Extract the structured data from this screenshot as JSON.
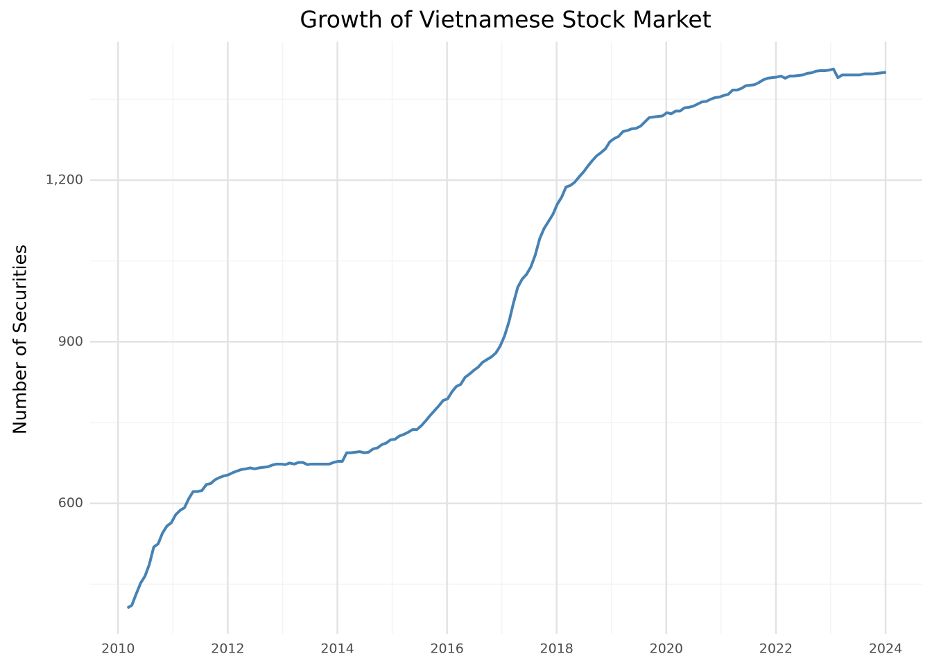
{
  "chart_data": {
    "type": "line",
    "title": "Growth of Vietnamese Stock Market",
    "y_label": "Number of Securities",
    "x": [
      2010.17,
      2010.25,
      2010.33,
      2010.41,
      2010.49,
      2010.57,
      2010.65,
      2010.73,
      2010.81,
      2010.89,
      2010.97,
      2011.05,
      2011.13,
      2011.21,
      2011.29,
      2011.37,
      2011.45,
      2011.53,
      2011.61,
      2011.69,
      2011.77,
      2011.85,
      2011.93,
      2012.01,
      2012.09,
      2012.17,
      2012.25,
      2012.33,
      2012.41,
      2012.49,
      2012.57,
      2012.65,
      2012.73,
      2012.81,
      2012.89,
      2012.97,
      2013.05,
      2013.13,
      2013.21,
      2013.29,
      2013.37,
      2013.45,
      2013.53,
      2013.61,
      2013.69,
      2013.77,
      2013.85,
      2013.93,
      2014.01,
      2014.09,
      2014.17,
      2014.25,
      2014.33,
      2014.41,
      2014.49,
      2014.57,
      2014.65,
      2014.73,
      2014.81,
      2014.89,
      2014.97,
      2015.05,
      2015.13,
      2015.21,
      2015.29,
      2015.37,
      2015.45,
      2015.53,
      2015.61,
      2015.69,
      2015.77,
      2015.85,
      2015.93,
      2016.01,
      2016.09,
      2016.17,
      2016.25,
      2016.33,
      2016.41,
      2016.49,
      2016.57,
      2016.65,
      2016.73,
      2016.81,
      2016.89,
      2016.97,
      2017.05,
      2017.13,
      2017.21,
      2017.29,
      2017.37,
      2017.45,
      2017.53,
      2017.61,
      2017.69,
      2017.77,
      2017.85,
      2017.93,
      2018.01,
      2018.09,
      2018.17,
      2018.25,
      2018.33,
      2018.41,
      2018.49,
      2018.57,
      2018.65,
      2018.73,
      2018.81,
      2018.89,
      2018.97,
      2019.05,
      2019.13,
      2019.21,
      2019.29,
      2019.37,
      2019.45,
      2019.53,
      2019.61,
      2019.69,
      2019.77,
      2019.85,
      2019.93,
      2020.01,
      2020.09,
      2020.17,
      2020.25,
      2020.33,
      2020.41,
      2020.49,
      2020.57,
      2020.65,
      2020.73,
      2020.81,
      2020.89,
      2020.97,
      2021.05,
      2021.13,
      2021.21,
      2021.29,
      2021.37,
      2021.45,
      2021.53,
      2021.61,
      2021.69,
      2021.77,
      2021.85,
      2021.93,
      2022.01,
      2022.09,
      2022.17,
      2022.25,
      2022.33,
      2022.41,
      2022.49,
      2022.57,
      2022.65,
      2022.73,
      2022.81,
      2022.89,
      2022.97,
      2023.05,
      2023.13,
      2023.21,
      2023.29,
      2023.37,
      2023.45,
      2023.53,
      2023.61,
      2023.69,
      2023.77,
      2023.85,
      2023.93,
      2024.01
    ],
    "series": [
      {
        "name": "Securities",
        "color": "#4682b4",
        "values": [
          406,
          411,
          432,
          452,
          465,
          487,
          519,
          525,
          545,
          558,
          564,
          579,
          587,
          592,
          609,
          622,
          622,
          624,
          635,
          637,
          644,
          648,
          651,
          653,
          657,
          660,
          663,
          664,
          666,
          664,
          666,
          667,
          668,
          671,
          673,
          673,
          672,
          675,
          673,
          676,
          676,
          672,
          673,
          673,
          673,
          673,
          673,
          676,
          678,
          678,
          694,
          694,
          695,
          696,
          694,
          695,
          701,
          703,
          709,
          712,
          718,
          719,
          725,
          728,
          732,
          737,
          737,
          744,
          753,
          763,
          772,
          781,
          791,
          794,
          807,
          817,
          821,
          834,
          840,
          847,
          853,
          862,
          867,
          872,
          879,
          892,
          911,
          937,
          971,
          1001,
          1016,
          1025,
          1039,
          1061,
          1091,
          1110,
          1123,
          1136,
          1155,
          1168,
          1187,
          1190,
          1196,
          1206,
          1215,
          1226,
          1236,
          1245,
          1251,
          1258,
          1271,
          1277,
          1281,
          1290,
          1292,
          1295,
          1296,
          1300,
          1308,
          1316,
          1317,
          1318,
          1319,
          1325,
          1323,
          1328,
          1328,
          1334,
          1335,
          1337,
          1341,
          1345,
          1346,
          1350,
          1353,
          1354,
          1357,
          1359,
          1367,
          1367,
          1370,
          1375,
          1376,
          1377,
          1381,
          1386,
          1389,
          1390,
          1391,
          1393,
          1389,
          1393,
          1393,
          1394,
          1395,
          1398,
          1399,
          1402,
          1403,
          1403,
          1404,
          1406,
          1390,
          1395,
          1395,
          1395,
          1395,
          1395,
          1397,
          1397,
          1397,
          1398,
          1399,
          1400
        ]
      }
    ],
    "xlim": [
      2009.49,
      2024.67
    ],
    "ylim": [
      358,
      1457
    ],
    "xticks": [
      2010,
      2012,
      2014,
      2016,
      2018,
      2020,
      2022,
      2024
    ],
    "yticks": [
      600,
      900,
      {
        "value": 1200,
        "label": "1,200"
      }
    ],
    "xminor": [
      2011,
      2013,
      2015,
      2017,
      2019,
      2021,
      2023
    ],
    "yminor": [
      450,
      750,
      1050,
      1350
    ],
    "grid": true
  }
}
